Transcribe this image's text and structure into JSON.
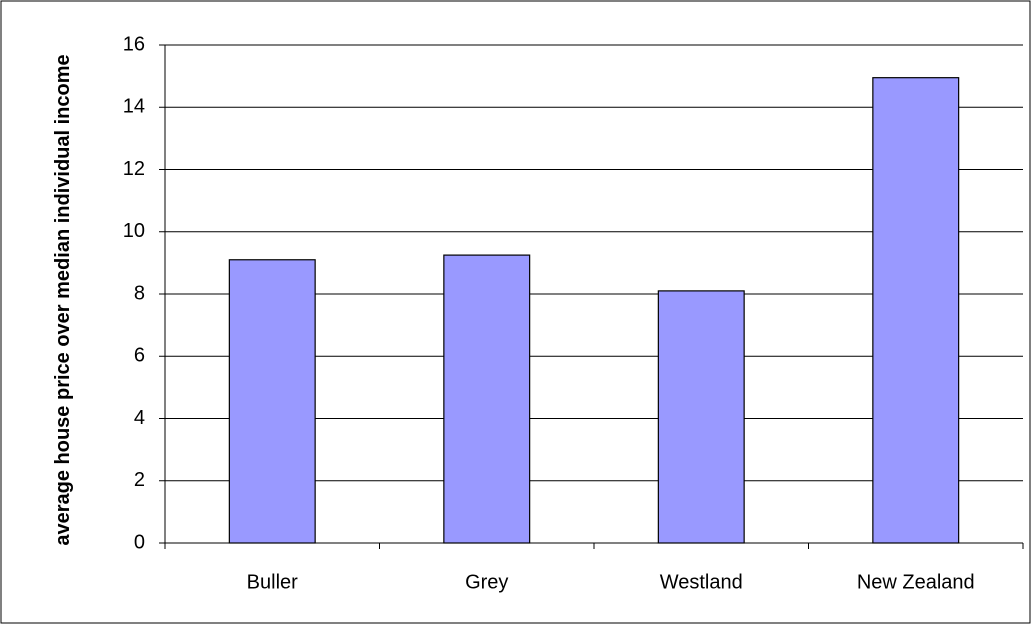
{
  "chart_data": {
    "type": "bar",
    "ylabel": "average house price over median individual income",
    "categories": [
      "Buller",
      "Grey",
      "Westland",
      "New Zealand"
    ],
    "values": [
      9.1,
      9.25,
      8.1,
      14.95
    ],
    "color": "#9999ff",
    "ylim": [
      0,
      16
    ],
    "yticks": [
      0,
      2,
      4,
      6,
      8,
      10,
      12,
      14,
      16
    ],
    "grid": true
  }
}
